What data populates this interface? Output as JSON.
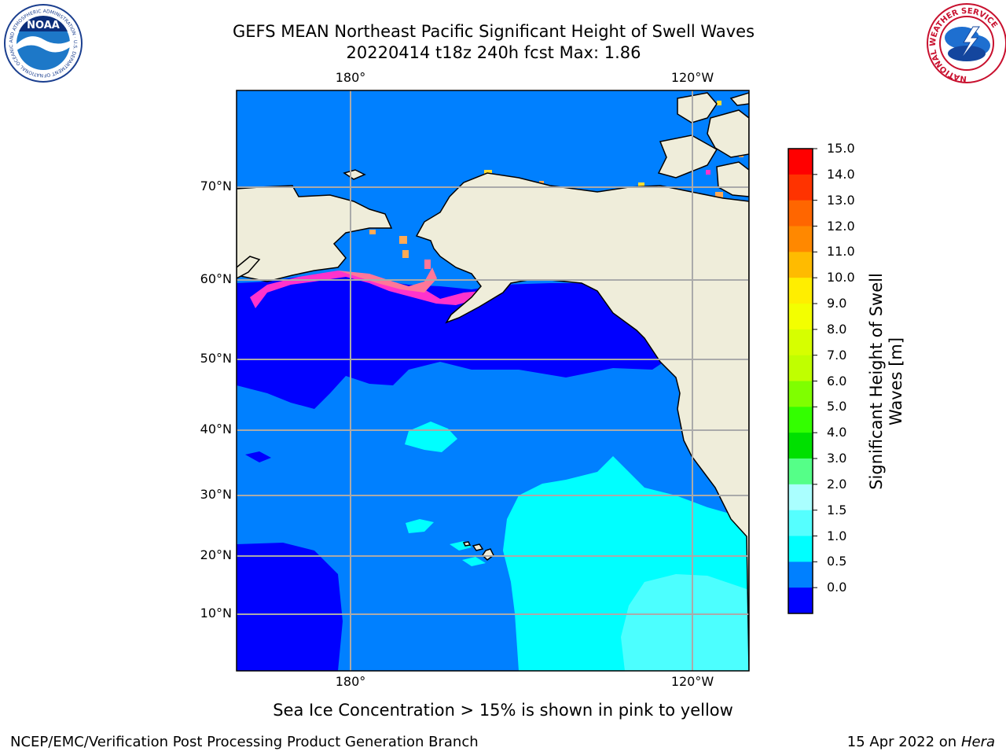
{
  "title": {
    "line1": "GEFS MEAN Northeast Pacific Significant Height of Swell Waves",
    "line2": "20220414 t18z 240h fcst   Max: 1.86"
  },
  "map": {
    "lon_labels_top": [
      "180°",
      "120°W"
    ],
    "lon_labels_bottom": [
      "180°",
      "120°W"
    ],
    "lat_labels": [
      "70°N",
      "60°N",
      "50°N",
      "40°N",
      "30°N",
      "20°N",
      "10°N"
    ],
    "gridlines": true,
    "land_color": "#efedda",
    "sea_ice_colors": [
      "#ff33cc",
      "#ff7799",
      "#ffaa55",
      "#ffdd33"
    ],
    "colors": {
      "deep_blue": "#0000ff",
      "blue": "#0080ff",
      "cyan": "#00ffff",
      "light_cyan": "#4cffff"
    }
  },
  "colorbar": {
    "label_line1": "Significant Height of Swell",
    "label_line2": "Waves [m]",
    "ticks": [
      "15.0",
      "14.0",
      "13.0",
      "12.0",
      "11.0",
      "10.0",
      "9.0",
      "8.0",
      "7.0",
      "6.0",
      "5.0",
      "4.0",
      "3.0",
      "2.0",
      "1.5",
      "1.0",
      "0.5",
      "0.0"
    ],
    "colors_top_to_bottom": [
      "#ff0000",
      "#ff3300",
      "#ff6600",
      "#ff8800",
      "#ffbb00",
      "#ffee00",
      "#f3ff00",
      "#d6ff00",
      "#c0ff00",
      "#7fff00",
      "#33ff00",
      "#00e000",
      "#55ff88",
      "#aaffff",
      "#55ffff",
      "#00ffff",
      "#0080ff",
      "#0000ff"
    ]
  },
  "caption": "Sea Ice Concentration > 15% is shown in pink to yellow",
  "footer": {
    "left": "NCEP/EMC/Verification Post Processing Product Generation Branch",
    "right_date": "15 Apr 2022 on ",
    "right_machine": "Hera"
  },
  "logos": {
    "noaa_text": "NOAA",
    "noaa_ring_text": "NATIONAL OCEANIC AND ATMOSPHERIC ADMINISTRATION · U.S. DEPARTMENT OF COMMERCE",
    "nws_ring_text": "NATIONAL WEATHER SERVICE"
  }
}
